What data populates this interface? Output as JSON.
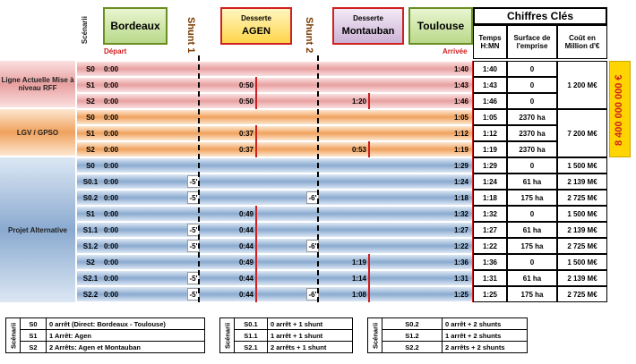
{
  "header": {
    "bordeaux": "Bordeaux",
    "desserte_agen_label": "Desserte",
    "agen": "AGEN",
    "desserte_mont_label": "Desserte",
    "montauban": "Montauban",
    "toulouse": "Toulouse",
    "shunt1": "Shunt 1",
    "shunt2": "Shunt 2",
    "scenarii": "Scénarii",
    "depart": "Départ",
    "arrivee": "Arrivée",
    "chiffres": "Chiffres Clés",
    "temps": "Temps H:MN",
    "surface": "Surface de l'emprise",
    "cout": "Coût en Million d'€"
  },
  "colors": {
    "red": "#e8a0a0",
    "orange": "#f0a25e",
    "blue": "#8aaad0",
    "accent_red": "#d02020",
    "highlight": "#ffd400"
  },
  "groups": [
    {
      "label": "Ligne Actuelle Mise à niveau RFF",
      "color": "red",
      "cost": "1 200 M€"
    },
    {
      "label": "LGV / GPSO",
      "color": "orange",
      "cost": "7 200 M€"
    },
    {
      "label": "Projet Alternative",
      "color": "blue"
    }
  ],
  "total_cost": "8 400 000 000 €",
  "rows": [
    {
      "s": "S0",
      "start": "0:00",
      "shunt1": "",
      "agen": "",
      "shunt2": "",
      "mont": "",
      "arr": "1:40",
      "temps": "1:40",
      "surface": "0",
      "cout": ""
    },
    {
      "s": "S1",
      "start": "0:00",
      "shunt1": "",
      "agen": "0:50",
      "shunt2": "",
      "mont": "",
      "arr": "1:43",
      "temps": "1:43",
      "surface": "0",
      "cout": ""
    },
    {
      "s": "S2",
      "start": "0:00",
      "shunt1": "",
      "agen": "0:50",
      "shunt2": "",
      "mont": "1:20",
      "arr": "1:46",
      "temps": "1:46",
      "surface": "0",
      "cout": ""
    },
    {
      "s": "S0",
      "start": "0:00",
      "shunt1": "",
      "agen": "",
      "shunt2": "",
      "mont": "",
      "arr": "1:05",
      "temps": "1:05",
      "surface": "2370 ha",
      "cout": ""
    },
    {
      "s": "S1",
      "start": "0:00",
      "shunt1": "",
      "agen": "0:37",
      "shunt2": "",
      "mont": "",
      "arr": "1:12",
      "temps": "1:12",
      "surface": "2370 ha",
      "cout": ""
    },
    {
      "s": "S2",
      "start": "0:00",
      "shunt1": "",
      "agen": "0:37",
      "shunt2": "",
      "mont": "0:53",
      "arr": "1:19",
      "temps": "1:19",
      "surface": "2370 ha",
      "cout": ""
    },
    {
      "s": "S0",
      "start": "0:00",
      "shunt1": "",
      "agen": "",
      "shunt2": "",
      "mont": "",
      "arr": "1:29",
      "temps": "1:29",
      "surface": "0",
      "cout": "1 500 M€"
    },
    {
      "s": "S0.1",
      "start": "0:00",
      "shunt1": "-5'",
      "agen": "",
      "shunt2": "",
      "mont": "",
      "arr": "1:24",
      "temps": "1:24",
      "surface": "61 ha",
      "cout": "2 139 M€"
    },
    {
      "s": "S0.2",
      "start": "0:00",
      "shunt1": "-5'",
      "agen": "",
      "shunt2": "-6'",
      "mont": "",
      "arr": "1:18",
      "temps": "1:18",
      "surface": "175 ha",
      "cout": "2 725 M€"
    },
    {
      "s": "S1",
      "start": "0:00",
      "shunt1": "",
      "agen": "0:49",
      "shunt2": "",
      "mont": "",
      "arr": "1:32",
      "temps": "1:32",
      "surface": "0",
      "cout": "1 500 M€"
    },
    {
      "s": "S1.1",
      "start": "0:00",
      "shunt1": "-5'",
      "agen": "0:44",
      "shunt2": "",
      "mont": "",
      "arr": "1:27",
      "temps": "1:27",
      "surface": "61 ha",
      "cout": "2 139 M€"
    },
    {
      "s": "S1.2",
      "start": "0:00",
      "shunt1": "-5'",
      "agen": "0:44",
      "shunt2": "-6'",
      "mont": "",
      "arr": "1:22",
      "temps": "1:22",
      "surface": "175 ha",
      "cout": "2 725 M€"
    },
    {
      "s": "S2",
      "start": "0:00",
      "shunt1": "",
      "agen": "0:49",
      "shunt2": "",
      "mont": "1:19",
      "arr": "1:36",
      "temps": "1:36",
      "surface": "0",
      "cout": "1 500 M€"
    },
    {
      "s": "S2.1",
      "start": "0:00",
      "shunt1": "-5'",
      "agen": "0:44",
      "shunt2": "",
      "mont": "1:14",
      "arr": "1:31",
      "temps": "1:31",
      "surface": "61 ha",
      "cout": "2 139 M€"
    },
    {
      "s": "S2.2",
      "start": "0:00",
      "shunt1": "-5'",
      "agen": "0:44",
      "shunt2": "-6'",
      "mont": "1:08",
      "arr": "1:25",
      "temps": "1:25",
      "surface": "175 ha",
      "cout": "2 725 M€"
    }
  ],
  "legend": {
    "title": "Scénarii",
    "col1": [
      [
        "S0",
        "0 arrêt (Direct: Bordeaux - Toulouse)"
      ],
      [
        "S1",
        "1 Arrêt:  Agen"
      ],
      [
        "S2",
        "2  Arrêts:  Agen et Montauban"
      ]
    ],
    "col2": [
      [
        "S0.1",
        "0 arrêt +  1 shunt"
      ],
      [
        "S1.1",
        "1 arrêt + 1 shunt"
      ],
      [
        "S2.1",
        "2 arrêts + 1 shunt"
      ]
    ],
    "col3": [
      [
        "S0.2",
        "0 arrêt + 2 shunts"
      ],
      [
        "S1.2",
        "1 arrêt + 2 shunts"
      ],
      [
        "S2.2",
        "2 arrêts + 2 shunts"
      ]
    ]
  }
}
